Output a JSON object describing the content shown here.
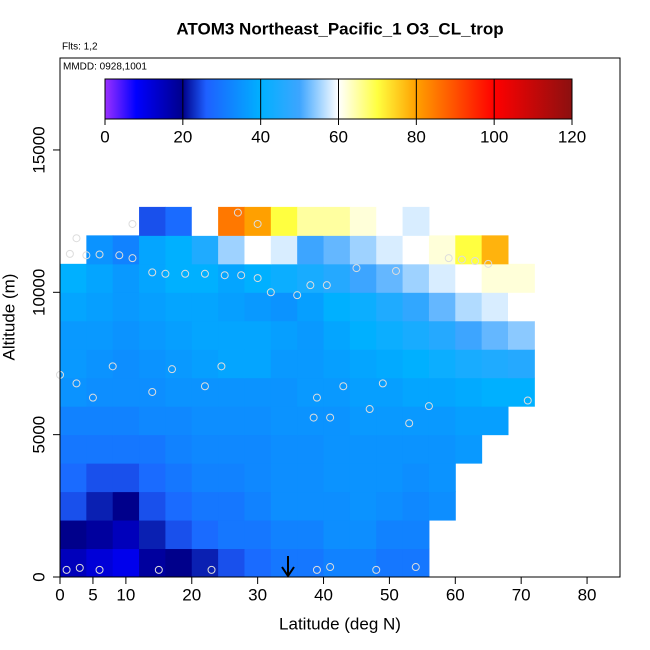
{
  "chart_data": {
    "type": "heatmap",
    "title": "ATOM3 Northeast_Pacific_1 O3_CL_trop",
    "subtitle_1": "Flts: 1,2",
    "subtitle_2": "MMDD: 0928,1001",
    "xlabel": "Latitude (deg N)",
    "ylabel": "Altitude (m)",
    "xlim": [
      0,
      85
    ],
    "ylim": [
      0,
      18230
    ],
    "xticks": [
      0,
      5,
      10,
      20,
      30,
      40,
      50,
      60,
      70,
      80
    ],
    "yticks": [
      0,
      5000,
      10000,
      15000
    ],
    "colorbar_ticks": [
      0,
      20,
      40,
      60,
      80,
      100,
      120
    ],
    "colorscale": [
      [
        0,
        "#9b30ff"
      ],
      [
        8,
        "#0000ff"
      ],
      [
        20,
        "#00008b"
      ],
      [
        26,
        "#1e60ff"
      ],
      [
        40,
        "#00b0ff"
      ],
      [
        50,
        "#3da5ff"
      ],
      [
        60,
        "#ffffff"
      ],
      [
        70,
        "#ffff40"
      ],
      [
        80,
        "#ffa000"
      ],
      [
        100,
        "#ff0000"
      ],
      [
        120,
        "#8b1010"
      ]
    ],
    "x_edges": [
      0,
      4,
      8,
      12,
      16,
      20,
      24,
      28,
      32,
      36,
      40,
      44,
      48,
      52,
      56,
      60,
      64,
      68,
      72
    ],
    "y_edges": [
      0,
      1000,
      2000,
      3000,
      4000,
      5000,
      6000,
      7000,
      8000,
      9000,
      10000,
      11000,
      12000,
      13000
    ],
    "values": [
      [
        15,
        12,
        10,
        18,
        20,
        22,
        25,
        28,
        30,
        30,
        32,
        32,
        30,
        30,
        null,
        null,
        null,
        null
      ],
      [
        20,
        18,
        15,
        22,
        25,
        28,
        30,
        30,
        32,
        32,
        34,
        34,
        32,
        32,
        null,
        null,
        null,
        null
      ],
      [
        25,
        22,
        20,
        25,
        28,
        30,
        30,
        32,
        34,
        34,
        34,
        35,
        34,
        33,
        34,
        null,
        null,
        null
      ],
      [
        28,
        25,
        25,
        28,
        30,
        32,
        32,
        33,
        34,
        34,
        35,
        35,
        35,
        34,
        35,
        null,
        null,
        null
      ],
      [
        30,
        30,
        30,
        30,
        32,
        33,
        33,
        33,
        34,
        34,
        35,
        35,
        35,
        35,
        35,
        36,
        null,
        null
      ],
      [
        32,
        32,
        32,
        33,
        33,
        34,
        34,
        34,
        35,
        35,
        35,
        36,
        36,
        36,
        36,
        37,
        37,
        null
      ],
      [
        35,
        34,
        34,
        34,
        35,
        35,
        35,
        35,
        35,
        36,
        36,
        37,
        37,
        38,
        38,
        39,
        40,
        40
      ],
      [
        36,
        35,
        34,
        35,
        36,
        37,
        38,
        38,
        36,
        36,
        37,
        38,
        39,
        40,
        42,
        44,
        45,
        46
      ],
      [
        36,
        36,
        35,
        36,
        37,
        38,
        38,
        38,
        37,
        36,
        38,
        40,
        42,
        44,
        46,
        50,
        52,
        54
      ],
      [
        38,
        37,
        36,
        37,
        38,
        38,
        37,
        36,
        35,
        37,
        40,
        42,
        45,
        48,
        52,
        56,
        58,
        60
      ],
      [
        40,
        38,
        36,
        38,
        40,
        40,
        38,
        40,
        42,
        44,
        46,
        50,
        52,
        55,
        58,
        60,
        62,
        62
      ],
      [
        null,
        35,
        32,
        38,
        40,
        45,
        55,
        60,
        58,
        50,
        52,
        55,
        58,
        60,
        62,
        70,
        78,
        null
      ],
      [
        null,
        null,
        null,
        25,
        28,
        60,
        85,
        80,
        70,
        65,
        65,
        62,
        60,
        58,
        null,
        null,
        null,
        null
      ]
    ],
    "samples": {
      "x": [
        1,
        3,
        6,
        15,
        23,
        39,
        41,
        48,
        54,
        0,
        2.5,
        5,
        8,
        14,
        17,
        22,
        24.5,
        39,
        38.5,
        41,
        43,
        47,
        49,
        53,
        56,
        71,
        14,
        16,
        19,
        22,
        25,
        27.5,
        30,
        32,
        36,
        38,
        40.5,
        45,
        51,
        1.5,
        4,
        6,
        9,
        11,
        2.5,
        11,
        30,
        27,
        59,
        61,
        63,
        65
      ],
      "y": [
        250,
        320,
        250,
        250,
        250,
        250,
        350,
        250,
        350,
        7100,
        6800,
        6300,
        7400,
        6500,
        7300,
        6700,
        7400,
        6300,
        5600,
        5600,
        6700,
        5900,
        6800,
        5400,
        6000,
        6200,
        10700,
        10650,
        10650,
        10650,
        10600,
        10600,
        10500,
        10000,
        9900,
        10250,
        10250,
        10850,
        10750,
        11350,
        11300,
        11330,
        11300,
        11200,
        11900,
        12400,
        12400,
        12800,
        11200,
        11150,
        11100,
        11000
      ]
    }
  }
}
